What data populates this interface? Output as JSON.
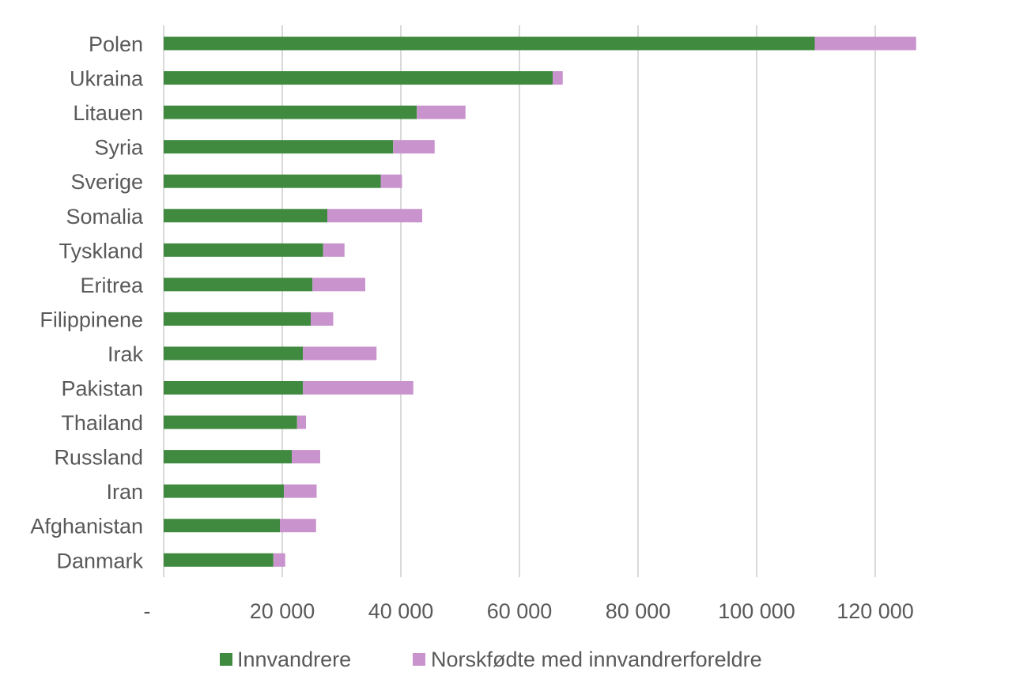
{
  "chart_data": {
    "type": "bar",
    "orientation": "horizontal",
    "stacked": true,
    "title": "",
    "xlabel": "",
    "ylabel": "",
    "categories": [
      "Polen",
      "Ukraina",
      "Litauen",
      "Syria",
      "Sverige",
      "Somalia",
      "Tyskland",
      "Eritrea",
      "Filippinene",
      "Irak",
      "Pakistan",
      "Thailand",
      "Russland",
      "Iran",
      "Afghanistan",
      "Danmark"
    ],
    "series": [
      {
        "name": "Innvandrere",
        "color": "#3f8a3f",
        "values": [
          109800,
          65600,
          42700,
          38700,
          36600,
          27600,
          26900,
          25100,
          24800,
          23500,
          23500,
          22500,
          21600,
          20300,
          19600,
          18500
        ]
      },
      {
        "name": "Norskfødte med innvandrerforeldre",
        "color": "#c994cd",
        "values": [
          17100,
          1700,
          8200,
          7000,
          3600,
          16000,
          3600,
          8900,
          3800,
          12400,
          18600,
          1500,
          4800,
          5500,
          6100,
          2000
        ]
      }
    ],
    "xlim": [
      0,
      120000
    ],
    "xticks": [
      0,
      20000,
      40000,
      60000,
      80000,
      100000,
      120000
    ],
    "xtick_labels": [
      "-",
      "20 000",
      "40 000",
      "60 000",
      "80 000",
      "100 000",
      "120 000"
    ],
    "grid": true,
    "legend_position": "bottom"
  }
}
